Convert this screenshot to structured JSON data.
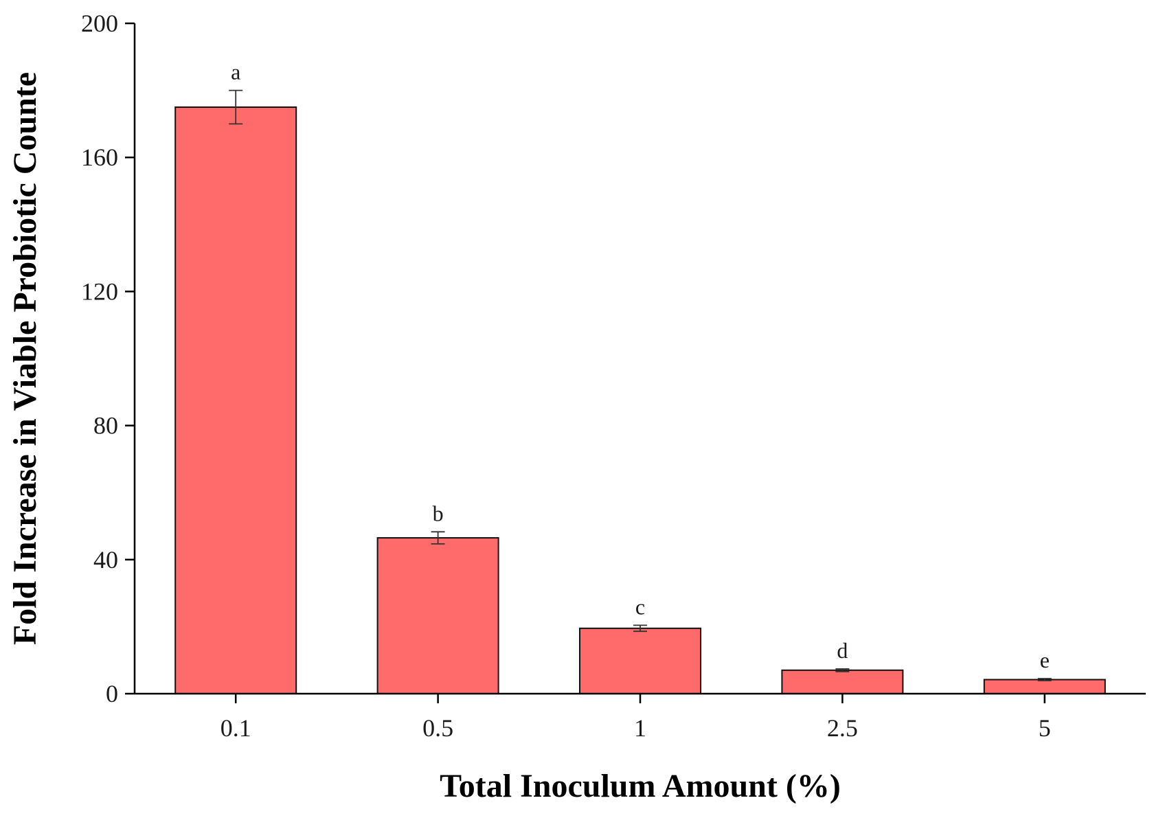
{
  "chart_data": {
    "type": "bar",
    "title": "",
    "xlabel": "Total Inoculum Amount (%)",
    "ylabel": "Fold Increase in Viable Probiotic Counte",
    "categories": [
      "0.1",
      "0.5",
      "1",
      "2.5",
      "5"
    ],
    "values": [
      175,
      46.5,
      19.5,
      7,
      4.2
    ],
    "errors": [
      5,
      1.8,
      0.9,
      0.4,
      0.3
    ],
    "significance": [
      "a",
      "b",
      "c",
      "d",
      "e"
    ],
    "ylim": [
      0,
      200
    ],
    "yticks": [
      "0",
      "40",
      "80",
      "120",
      "160",
      "200"
    ],
    "grid": false,
    "colors": {
      "bar_fill": "#ff6b6b",
      "bar_stroke": "#111111",
      "axis": "#000000"
    }
  }
}
